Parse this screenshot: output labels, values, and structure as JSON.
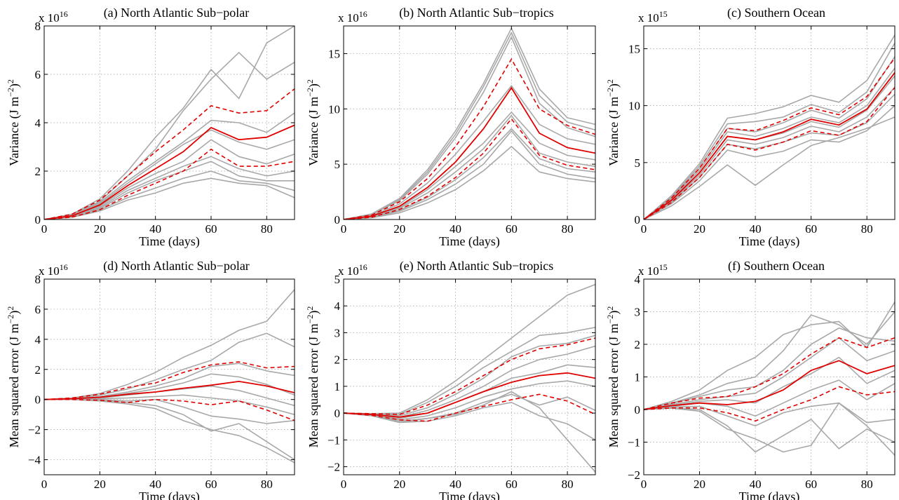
{
  "colors": {
    "member": "#a8a8a8",
    "mean": "#e00000",
    "bound": "#e00000"
  },
  "chart_data": [
    {
      "type": "line",
      "title": "(a) North Atlantic Sub−polar",
      "xlabel": "Time (days)",
      "ylabel": "Variance (J m−2)2",
      "exponent_base": "x 10",
      "exponent_power": "16",
      "xlim": [
        0,
        90
      ],
      "ylim": [
        0,
        8
      ],
      "xticks": [
        0,
        20,
        40,
        60,
        80
      ],
      "yticks": [
        0,
        2,
        4,
        6,
        8
      ],
      "grid": true,
      "x": [
        0,
        10,
        20,
        30,
        40,
        50,
        60,
        70,
        80,
        90
      ],
      "mean": [
        0,
        0.15,
        0.6,
        1.4,
        2.1,
        2.8,
        3.8,
        3.3,
        3.4,
        3.9
      ],
      "upper": [
        0,
        0.22,
        0.8,
        1.8,
        2.8,
        3.7,
        4.7,
        4.4,
        4.5,
        5.4
      ],
      "lower": [
        0,
        0.1,
        0.4,
        1.0,
        1.5,
        2.0,
        2.9,
        2.2,
        2.2,
        2.4
      ],
      "members": [
        [
          0,
          0.22,
          0.85,
          2.0,
          3.4,
          4.6,
          6.2,
          5.0,
          7.3,
          8.0
        ],
        [
          0,
          0.2,
          0.75,
          1.8,
          2.9,
          4.5,
          5.8,
          6.9,
          5.8,
          6.5
        ],
        [
          0,
          0.18,
          0.7,
          1.6,
          2.4,
          3.2,
          4.1,
          4.0,
          3.6,
          4.4
        ],
        [
          0,
          0.16,
          0.65,
          1.5,
          2.3,
          3.1,
          3.7,
          3.2,
          2.9,
          3.3
        ],
        [
          0,
          0.14,
          0.55,
          1.3,
          1.9,
          2.4,
          3.3,
          2.6,
          2.3,
          2.7
        ],
        [
          0,
          0.12,
          0.5,
          1.2,
          1.7,
          2.2,
          2.6,
          2.1,
          1.8,
          2.0
        ],
        [
          0,
          0.11,
          0.45,
          1.1,
          1.6,
          2.0,
          2.4,
          1.8,
          1.6,
          1.6
        ],
        [
          0,
          0.1,
          0.4,
          0.9,
          1.3,
          1.7,
          2.0,
          1.6,
          1.5,
          1.2
        ],
        [
          0,
          0.09,
          0.35,
          0.8,
          1.1,
          1.5,
          1.7,
          1.5,
          1.4,
          0.9
        ]
      ]
    },
    {
      "type": "line",
      "title": "(b) North Atlantic Sub−tropics",
      "xlabel": "Time (days)",
      "ylabel": "Variance (J m−2)2",
      "exponent_base": "x 10",
      "exponent_power": "16",
      "xlim": [
        0,
        90
      ],
      "ylim": [
        0,
        17.5
      ],
      "xticks": [
        0,
        20,
        40,
        60,
        80
      ],
      "yticks": [
        0,
        5,
        10,
        15
      ],
      "grid": true,
      "x": [
        0,
        10,
        20,
        30,
        40,
        50,
        60,
        70,
        80,
        90
      ],
      "mean": [
        0,
        0.3,
        1.2,
        2.9,
        5.2,
        8.2,
        11.9,
        7.8,
        6.5,
        6.0
      ],
      "upper": [
        0,
        0.4,
        1.6,
        3.7,
        6.6,
        10.2,
        14.5,
        10.0,
        8.5,
        7.7
      ],
      "lower": [
        0,
        0.2,
        0.9,
        2.1,
        3.8,
        6.0,
        9.1,
        5.8,
        4.9,
        4.5
      ],
      "members": [
        [
          0,
          0.5,
          1.9,
          4.5,
          8.0,
          12.3,
          17.3,
          11.8,
          9.2,
          8.6
        ],
        [
          0,
          0.48,
          1.8,
          4.3,
          7.7,
          12.0,
          16.9,
          11.2,
          8.8,
          8.1
        ],
        [
          0,
          0.45,
          1.7,
          4.1,
          7.4,
          11.5,
          16.5,
          10.5,
          8.3,
          7.5
        ],
        [
          0,
          0.35,
          1.4,
          3.3,
          5.9,
          8.9,
          12.1,
          8.6,
          7.3,
          6.8
        ],
        [
          0,
          0.3,
          1.1,
          2.7,
          4.8,
          6.9,
          9.7,
          6.9,
          5.8,
          5.4
        ],
        [
          0,
          0.25,
          1.0,
          2.4,
          4.3,
          6.4,
          9.4,
          6.0,
          5.2,
          4.8
        ],
        [
          0,
          0.2,
          0.85,
          2.0,
          3.6,
          5.6,
          8.2,
          5.5,
          4.6,
          4.3
        ],
        [
          0,
          0.18,
          0.75,
          1.8,
          3.2,
          5.0,
          8.0,
          5.0,
          4.1,
          3.7
        ],
        [
          0,
          0.15,
          0.6,
          1.5,
          2.7,
          4.4,
          6.6,
          4.3,
          3.7,
          3.4
        ]
      ]
    },
    {
      "type": "line",
      "title": "(c) Southern Ocean",
      "xlabel": "Time (days)",
      "ylabel": "Variance (J m−2)2",
      "exponent_base": "x 10",
      "exponent_power": "15",
      "xlim": [
        0,
        90
      ],
      "ylim": [
        0,
        17
      ],
      "xticks": [
        0,
        20,
        40,
        60,
        80
      ],
      "yticks": [
        0,
        5,
        10,
        15
      ],
      "grid": true,
      "x": [
        0,
        10,
        20,
        30,
        40,
        50,
        60,
        70,
        80,
        90
      ],
      "mean": [
        0,
        1.7,
        4.1,
        7.3,
        7.0,
        7.7,
        8.8,
        8.3,
        9.7,
        12.9
      ],
      "upper": [
        0,
        1.9,
        4.5,
        8.0,
        7.8,
        8.7,
        9.8,
        9.2,
        10.8,
        14.2
      ],
      "lower": [
        0,
        1.5,
        3.7,
        6.6,
        6.1,
        6.8,
        7.8,
        7.4,
        8.6,
        11.6
      ],
      "members": [
        [
          0,
          2.1,
          4.9,
          8.9,
          9.3,
          9.9,
          10.9,
          10.3,
          12.2,
          16.2
        ],
        [
          0,
          2.0,
          4.7,
          8.4,
          8.6,
          9.0,
          10.1,
          9.4,
          11.2,
          15.5
        ],
        [
          0,
          1.9,
          4.5,
          8.0,
          7.7,
          8.5,
          9.6,
          8.9,
          10.6,
          14.3
        ],
        [
          0,
          1.8,
          4.3,
          7.7,
          7.3,
          8.0,
          9.0,
          8.5,
          10.0,
          13.3
        ],
        [
          0,
          1.7,
          4.1,
          7.3,
          7.0,
          7.6,
          8.6,
          8.1,
          9.6,
          12.6
        ],
        [
          0,
          1.6,
          3.9,
          7.0,
          6.6,
          7.2,
          8.2,
          7.7,
          9.0,
          11.6
        ],
        [
          0,
          1.5,
          3.7,
          6.6,
          6.2,
          6.8,
          7.6,
          7.4,
          8.5,
          11.0
        ],
        [
          0,
          1.4,
          3.4,
          6.1,
          5.5,
          6.0,
          7.0,
          6.8,
          7.8,
          10.0
        ],
        [
          0,
          1.2,
          2.9,
          4.8,
          3.0,
          4.8,
          6.5,
          7.2,
          8.0,
          9.0
        ]
      ]
    },
    {
      "type": "line",
      "title": "(d) North Atlantic Sub−polar",
      "xlabel": "Time (days)",
      "ylabel": "Mean squared error (J m−2)2",
      "exponent_base": "x 10",
      "exponent_power": "16",
      "xlim": [
        0,
        90
      ],
      "ylim": [
        -5,
        8
      ],
      "xticks": [
        0,
        20,
        40,
        60,
        80
      ],
      "yticks": [
        -4,
        -2,
        0,
        2,
        4,
        6,
        8
      ],
      "grid": true,
      "x": [
        0,
        10,
        20,
        30,
        40,
        50,
        60,
        70,
        80,
        90
      ],
      "mean": [
        0,
        0.05,
        0.15,
        0.35,
        0.5,
        0.75,
        0.95,
        1.2,
        0.9,
        0.45
      ],
      "upper": [
        0,
        0.1,
        0.35,
        0.8,
        1.1,
        1.8,
        2.3,
        2.5,
        2.1,
        2.2
      ],
      "lower": [
        0,
        0.0,
        -0.05,
        -0.2,
        0.0,
        -0.1,
        -0.35,
        -0.1,
        -0.7,
        -1.4
      ],
      "members": [
        [
          0,
          0.1,
          0.4,
          1.0,
          1.8,
          2.8,
          3.6,
          4.6,
          5.2,
          7.3
        ],
        [
          0,
          0.05,
          0.3,
          0.7,
          1.3,
          2.0,
          2.6,
          3.8,
          4.4,
          3.5
        ],
        [
          0,
          0.05,
          0.2,
          0.5,
          0.9,
          1.4,
          2.2,
          2.4,
          1.9,
          1.6
        ],
        [
          0,
          0.04,
          0.15,
          0.4,
          0.7,
          1.1,
          1.7,
          1.5,
          1.0,
          0.3
        ],
        [
          0,
          0.03,
          0.1,
          0.3,
          0.5,
          0.7,
          0.9,
          0.6,
          0.1,
          -0.4
        ],
        [
          0,
          0.02,
          0.05,
          0.1,
          0.2,
          0.3,
          0.1,
          -0.1,
          -0.5,
          -1.0
        ],
        [
          0,
          0.01,
          0.0,
          -0.1,
          0.0,
          -0.5,
          -1.1,
          -1.3,
          -1.6,
          -1.4
        ],
        [
          0,
          0.0,
          -0.05,
          -0.2,
          -0.4,
          -1.0,
          -2.1,
          -1.6,
          -2.8,
          -4.0
        ],
        [
          0,
          0.0,
          -0.1,
          -0.3,
          -0.6,
          -1.4,
          -2.0,
          -2.4,
          -3.2,
          -4.2
        ]
      ]
    },
    {
      "type": "line",
      "title": "(e) North Atlantic Sub−tropics",
      "xlabel": "Time (days)",
      "ylabel": "Mean squared error (J m−2)2",
      "exponent_base": "x 10",
      "exponent_power": "16",
      "xlim": [
        0,
        90
      ],
      "ylim": [
        -2.3,
        5
      ],
      "xticks": [
        0,
        20,
        40,
        60,
        80
      ],
      "yticks": [
        -2,
        -1,
        0,
        1,
        2,
        3,
        4,
        5
      ],
      "grid": true,
      "x": [
        0,
        10,
        20,
        30,
        40,
        50,
        60,
        70,
        80,
        90
      ],
      "mean": [
        0,
        -0.05,
        -0.15,
        0.0,
        0.4,
        0.8,
        1.15,
        1.4,
        1.5,
        1.3
      ],
      "upper": [
        0,
        -0.02,
        -0.05,
        0.3,
        0.8,
        1.4,
        2.0,
        2.4,
        2.55,
        2.8
      ],
      "lower": [
        0,
        -0.08,
        -0.25,
        -0.3,
        0.0,
        0.25,
        0.5,
        0.7,
        0.45,
        -0.05
      ],
      "members": [
        [
          0,
          -0.02,
          0.0,
          0.5,
          1.2,
          2.0,
          2.8,
          3.6,
          4.4,
          4.8
        ],
        [
          0,
          -0.03,
          -0.05,
          0.4,
          1.0,
          1.7,
          2.3,
          2.9,
          3.0,
          3.2
        ],
        [
          0,
          -0.04,
          -0.1,
          0.2,
          0.7,
          1.3,
          2.1,
          2.5,
          2.6,
          2.9
        ],
        [
          0,
          -0.05,
          -0.15,
          0.1,
          0.5,
          1.0,
          1.6,
          2.0,
          2.2,
          2.5
        ],
        [
          0,
          -0.06,
          -0.2,
          0.0,
          0.4,
          0.8,
          1.3,
          1.5,
          1.8,
          1.7
        ],
        [
          0,
          -0.07,
          -0.25,
          -0.1,
          0.2,
          0.6,
          0.9,
          1.1,
          1.2,
          1.0
        ],
        [
          0,
          -0.08,
          -0.3,
          -0.2,
          0.0,
          0.4,
          0.7,
          0.3,
          0.6,
          0.1
        ],
        [
          0,
          -0.09,
          -0.35,
          -0.3,
          -0.1,
          0.2,
          0.4,
          -0.1,
          -0.4,
          -1.0
        ],
        [
          0,
          -0.1,
          -0.35,
          -0.2,
          -0.05,
          0.3,
          0.8,
          0.2,
          -1.0,
          -2.2
        ]
      ]
    },
    {
      "type": "line",
      "title": "(f) Southern Ocean",
      "xlabel": "Time (days)",
      "ylabel": "Mean squared error (J m−2)2",
      "exponent_base": "x 10",
      "exponent_power": "15",
      "xlim": [
        0,
        90
      ],
      "ylim": [
        -2,
        4
      ],
      "xticks": [
        0,
        20,
        40,
        60,
        80
      ],
      "yticks": [
        -2,
        -1,
        0,
        1,
        2,
        3,
        4
      ],
      "grid": true,
      "x": [
        0,
        10,
        20,
        30,
        40,
        50,
        60,
        70,
        80,
        90
      ],
      "mean": [
        0,
        0.12,
        0.2,
        0.15,
        0.25,
        0.6,
        1.2,
        1.5,
        1.1,
        1.35
      ],
      "upper": [
        0,
        0.2,
        0.35,
        0.4,
        0.7,
        1.1,
        1.7,
        2.2,
        1.9,
        2.2
      ],
      "lower": [
        0,
        0.05,
        0.05,
        -0.1,
        -0.35,
        0.0,
        0.3,
        0.7,
        0.45,
        0.55
      ],
      "members": [
        [
          0,
          0.25,
          0.6,
          1.2,
          1.6,
          2.3,
          2.6,
          2.7,
          1.9,
          3.3
        ],
        [
          0,
          0.2,
          0.45,
          0.8,
          1.0,
          1.8,
          2.9,
          2.6,
          2.0,
          3.0
        ],
        [
          0,
          0.18,
          0.4,
          0.6,
          0.7,
          1.2,
          2.0,
          2.5,
          2.2,
          2.1
        ],
        [
          0,
          0.15,
          0.3,
          0.4,
          0.5,
          1.0,
          1.6,
          2.2,
          1.5,
          1.8
        ],
        [
          0,
          0.12,
          0.25,
          0.3,
          0.2,
          0.7,
          1.1,
          1.6,
          0.8,
          1.2
        ],
        [
          0,
          0.1,
          0.2,
          0.1,
          -0.2,
          0.2,
          0.6,
          0.9,
          0.3,
          0.8
        ],
        [
          0,
          0.08,
          0.1,
          -0.2,
          -0.5,
          -0.1,
          0.1,
          0.2,
          -0.4,
          -0.3
        ],
        [
          0,
          0.05,
          0.0,
          -0.5,
          -1.3,
          -0.8,
          -0.3,
          -1.2,
          -0.6,
          -1.0
        ],
        [
          0,
          0.04,
          -0.05,
          -0.6,
          -0.9,
          -1.3,
          -1.1,
          0.2,
          -0.5,
          -1.4
        ]
      ]
    }
  ]
}
